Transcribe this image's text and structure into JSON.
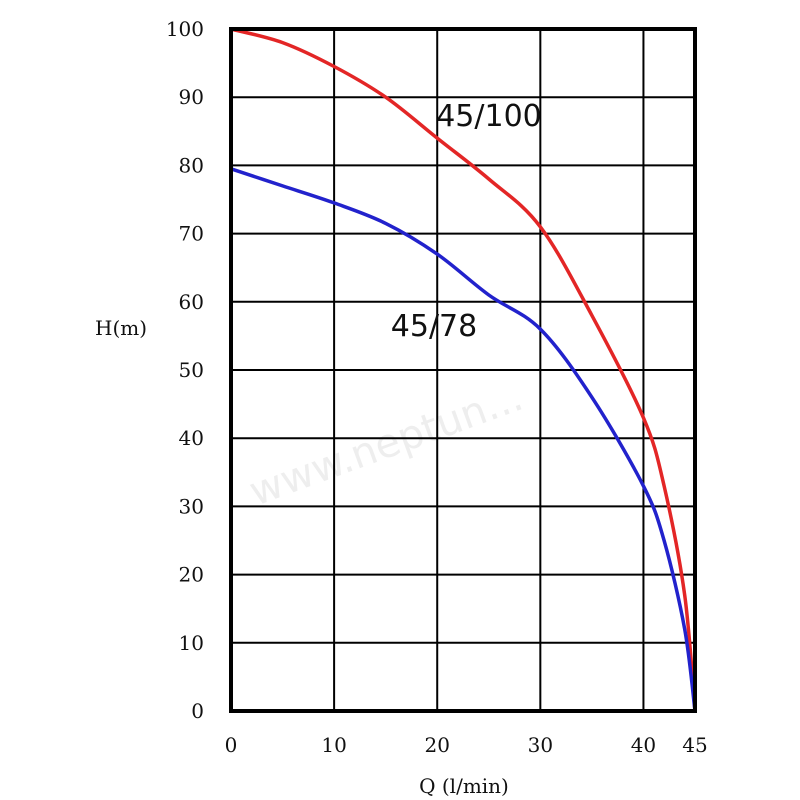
{
  "chart_data": {
    "type": "line",
    "title": "",
    "xlabel": "Q (l/min)",
    "ylabel": "H(m)",
    "xlim": [
      0,
      45
    ],
    "ylim": [
      0,
      100
    ],
    "xticks": [
      0,
      10,
      20,
      30,
      40,
      45
    ],
    "yticks": [
      0,
      10,
      20,
      30,
      40,
      50,
      60,
      70,
      80,
      90,
      100
    ],
    "xtick_labels": [
      "0",
      "10",
      "20",
      "30",
      "40",
      "45"
    ],
    "ytick_labels": [
      "0",
      "10",
      "20",
      "30",
      "40",
      "50",
      "60",
      "70",
      "80",
      "90",
      "100"
    ],
    "grid": true,
    "legend": "none",
    "series": [
      {
        "name": "45/100",
        "color": "#e32626",
        "x": [
          0,
          5,
          10,
          15,
          20,
          25,
          30,
          35,
          40,
          42,
          44,
          45
        ],
        "y": [
          100,
          98,
          94.5,
          90,
          84,
          78,
          71,
          58,
          43,
          33,
          17,
          0
        ]
      },
      {
        "name": "45/78",
        "color": "#2222cc",
        "x": [
          0,
          5,
          10,
          15,
          20,
          25,
          30,
          35,
          40,
          42,
          44,
          45
        ],
        "y": [
          79.5,
          77,
          74.5,
          71.5,
          67,
          61,
          56,
          46,
          33,
          25,
          12,
          0
        ]
      }
    ]
  },
  "watermark_text": "www.neptun..."
}
